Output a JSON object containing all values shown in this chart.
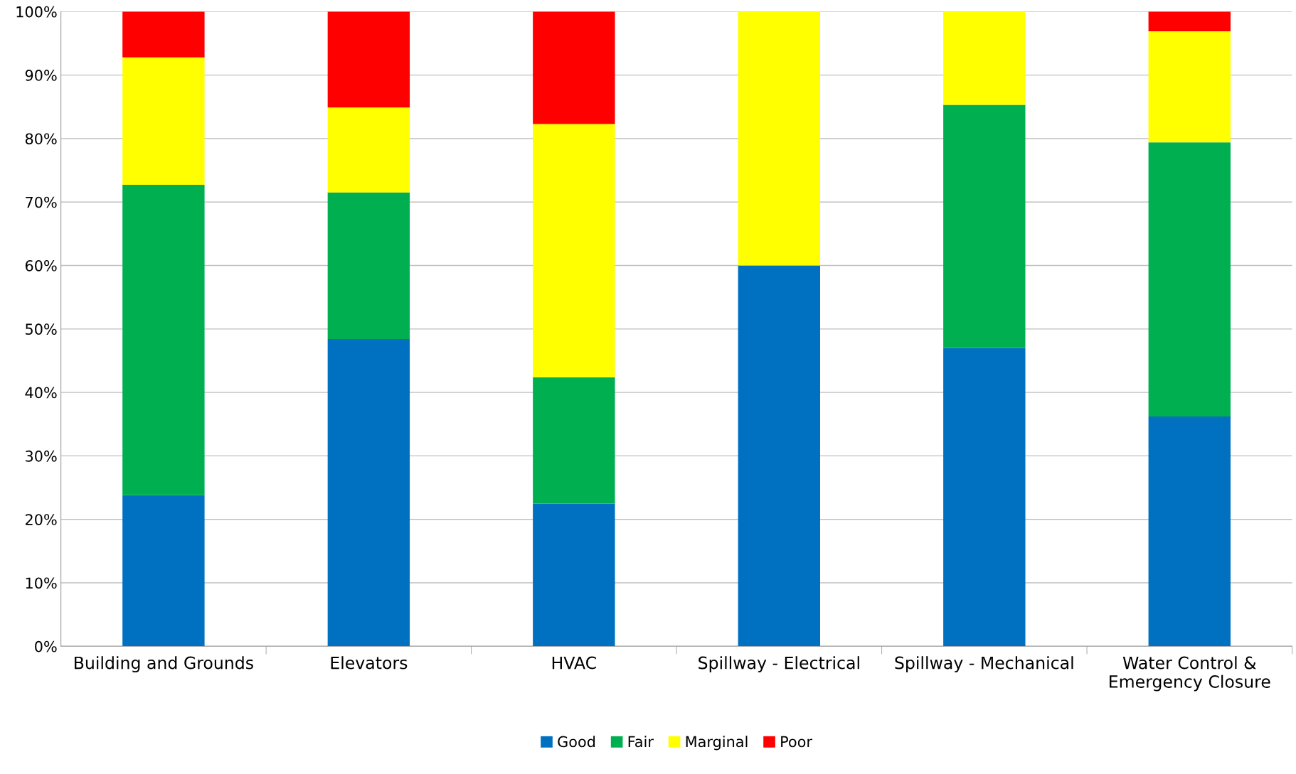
{
  "chart_data": {
    "type": "bar",
    "stacked": true,
    "categories": [
      "Building and Grounds",
      "Elevators",
      "HVAC",
      "Spillway - Electrical",
      "Spillway - Mechanical",
      "Water Control &\nEmergency Closure"
    ],
    "series": [
      {
        "name": "Good",
        "color": "#0070c0",
        "values": [
          23.8,
          48.4,
          22.5,
          60,
          47.0,
          36.2
        ]
      },
      {
        "name": "Fair",
        "color": "#00b050",
        "values": [
          48.9,
          23.1,
          19.9,
          0,
          38.3,
          43.2
        ]
      },
      {
        "name": "Marginal",
        "color": "#ffff00",
        "values": [
          20.1,
          13.4,
          39.9,
          40,
          14.7,
          17.5
        ]
      },
      {
        "name": "Poor",
        "color": "#ff0000",
        "values": [
          7.2,
          15.1,
          17.7,
          0,
          0,
          3.1
        ]
      }
    ],
    "ylim": [
      0,
      100
    ],
    "yticks": [
      {
        "value": 0,
        "label": "0%"
      },
      {
        "value": 10,
        "label": "10%"
      },
      {
        "value": 20,
        "label": "20%"
      },
      {
        "value": 30,
        "label": "30%"
      },
      {
        "value": 40,
        "label": "40%"
      },
      {
        "value": 50,
        "label": "50%"
      },
      {
        "value": 60,
        "label": "60%"
      },
      {
        "value": 70,
        "label": "70%"
      },
      {
        "value": 80,
        "label": "80%"
      },
      {
        "value": 90,
        "label": "90%"
      },
      {
        "value": 100,
        "label": "100%"
      }
    ],
    "grid": "y",
    "legend": "bottom"
  }
}
